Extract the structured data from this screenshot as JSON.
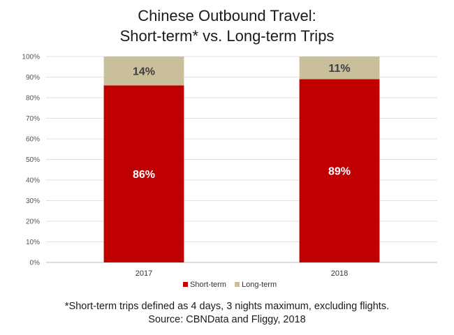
{
  "title_lines": [
    "Chinese Outbound Travel:",
    "Short-term* vs. Long-term Trips"
  ],
  "footnote_lines": [
    "*Short-term trips defined as 4 days, 3 nights maximum, excluding flights.",
    "Source: CBNData and Fliggy, 2018"
  ],
  "chart_data": {
    "type": "bar",
    "stacked": true,
    "title": "Chinese Outbound Travel: Short-term* vs. Long-term Trips",
    "categories": [
      "2017",
      "2018"
    ],
    "series": [
      {
        "name": "Short-term",
        "values": [
          86,
          89
        ],
        "labels": [
          "86%",
          "89%"
        ],
        "color": "#c00000",
        "label_color": "#ffffff"
      },
      {
        "name": "Long-term",
        "values": [
          14,
          11
        ],
        "labels": [
          "14%",
          "11%"
        ],
        "color": "#c9bf9b",
        "label_color": "#404040"
      }
    ],
    "ylim": [
      0,
      100
    ],
    "yticks": [
      0,
      10,
      20,
      30,
      40,
      50,
      60,
      70,
      80,
      90,
      100
    ],
    "ytick_labels": [
      "0%",
      "10%",
      "20%",
      "30%",
      "40%",
      "50%",
      "60%",
      "70%",
      "80%",
      "90%",
      "100%"
    ],
    "grid": true,
    "legend_position": "bottom"
  }
}
